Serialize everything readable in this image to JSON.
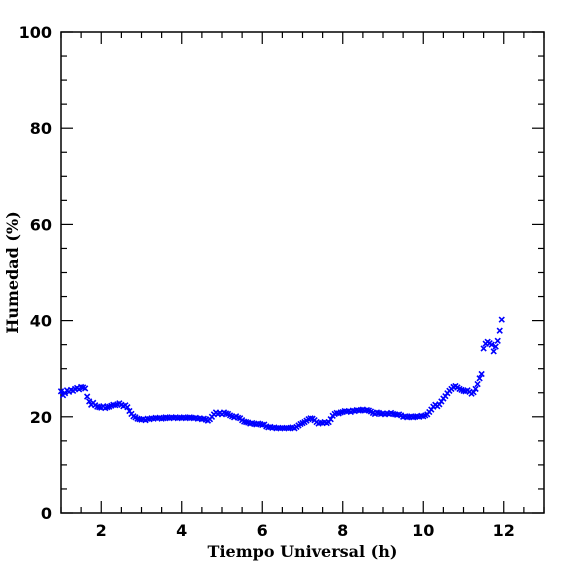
{
  "chart_data": {
    "type": "scatter",
    "xlabel": "Tiempo Universal (h)",
    "ylabel": "Humedad (%)",
    "xlim": [
      1,
      13
    ],
    "ylim": [
      0,
      100
    ],
    "xticks": [
      2,
      4,
      6,
      8,
      10,
      12
    ],
    "yticks": [
      0,
      20,
      40,
      60,
      80,
      100
    ],
    "marker": "x",
    "color": "#0000ff",
    "grid": false,
    "series": [
      {
        "points": [
          [
            1.0,
            25.3
          ],
          [
            1.05,
            24.5
          ],
          [
            1.1,
            24.9
          ],
          [
            1.15,
            25.5
          ],
          [
            1.2,
            25.2
          ],
          [
            1.25,
            25.6
          ],
          [
            1.3,
            25.4
          ],
          [
            1.35,
            25.8
          ],
          [
            1.4,
            26.0
          ],
          [
            1.45,
            25.7
          ],
          [
            1.5,
            26.2
          ],
          [
            1.55,
            26.1
          ],
          [
            1.6,
            25.9
          ],
          [
            1.65,
            24.2
          ],
          [
            1.7,
            23.2
          ],
          [
            1.75,
            22.5
          ],
          [
            1.8,
            22.9
          ],
          [
            1.85,
            22.4
          ],
          [
            1.9,
            22.1
          ],
          [
            1.95,
            22.0
          ],
          [
            2.0,
            21.9
          ],
          [
            2.05,
            22.2
          ],
          [
            2.1,
            21.8
          ],
          [
            2.15,
            22.0
          ],
          [
            2.2,
            22.1
          ],
          [
            2.25,
            22.3
          ],
          [
            2.3,
            22.5
          ],
          [
            2.35,
            22.4
          ],
          [
            2.4,
            22.6
          ],
          [
            2.45,
            22.8
          ],
          [
            2.5,
            22.5
          ],
          [
            2.55,
            22.2
          ],
          [
            2.6,
            22.4
          ],
          [
            2.65,
            22.0
          ],
          [
            2.7,
            21.2
          ],
          [
            2.75,
            20.6
          ],
          [
            2.8,
            20.1
          ],
          [
            2.85,
            19.9
          ],
          [
            2.9,
            19.6
          ],
          [
            2.95,
            19.5
          ],
          [
            3.0,
            19.4
          ],
          [
            3.05,
            19.5
          ],
          [
            3.1,
            19.3
          ],
          [
            3.15,
            19.6
          ],
          [
            3.2,
            19.5
          ],
          [
            3.25,
            19.7
          ],
          [
            3.3,
            19.6
          ],
          [
            3.35,
            19.8
          ],
          [
            3.4,
            19.7
          ],
          [
            3.45,
            19.8
          ],
          [
            3.5,
            19.6
          ],
          [
            3.55,
            19.7
          ],
          [
            3.6,
            19.9
          ],
          [
            3.65,
            19.8
          ],
          [
            3.7,
            19.7
          ],
          [
            3.75,
            19.9
          ],
          [
            3.8,
            19.8
          ],
          [
            3.85,
            19.9
          ],
          [
            3.9,
            19.7
          ],
          [
            3.95,
            19.8
          ],
          [
            4.0,
            19.8
          ],
          [
            4.05,
            19.9
          ],
          [
            4.1,
            19.7
          ],
          [
            4.15,
            19.8
          ],
          [
            4.2,
            19.9
          ],
          [
            4.25,
            19.8
          ],
          [
            4.3,
            19.7
          ],
          [
            4.35,
            19.8
          ],
          [
            4.4,
            19.6
          ],
          [
            4.45,
            19.7
          ],
          [
            4.5,
            19.5
          ],
          [
            4.55,
            19.6
          ],
          [
            4.6,
            19.4
          ],
          [
            4.65,
            19.2
          ],
          [
            4.7,
            19.5
          ],
          [
            4.75,
            20.0
          ],
          [
            4.8,
            20.5
          ],
          [
            4.85,
            20.9
          ],
          [
            4.9,
            20.6
          ],
          [
            4.95,
            20.8
          ],
          [
            5.0,
            20.5
          ],
          [
            5.05,
            20.9
          ],
          [
            5.1,
            20.7
          ],
          [
            5.15,
            20.6
          ],
          [
            5.2,
            20.3
          ],
          [
            5.25,
            20.1
          ],
          [
            5.3,
            19.9
          ],
          [
            5.35,
            20.1
          ],
          [
            5.4,
            19.8
          ],
          [
            5.45,
            19.7
          ],
          [
            5.5,
            19.3
          ],
          [
            5.55,
            19.0
          ],
          [
            5.6,
            18.9
          ],
          [
            5.65,
            18.8
          ],
          [
            5.7,
            18.6
          ],
          [
            5.75,
            18.7
          ],
          [
            5.8,
            18.5
          ],
          [
            5.85,
            18.4
          ],
          [
            5.9,
            18.6
          ],
          [
            5.95,
            18.5
          ],
          [
            6.0,
            18.3
          ],
          [
            6.05,
            18.4
          ],
          [
            6.1,
            18.0
          ],
          [
            6.15,
            17.8
          ],
          [
            6.2,
            17.9
          ],
          [
            6.25,
            17.7
          ],
          [
            6.3,
            17.8
          ],
          [
            6.35,
            17.6
          ],
          [
            6.4,
            17.7
          ],
          [
            6.45,
            17.6
          ],
          [
            6.5,
            17.7
          ],
          [
            6.55,
            17.6
          ],
          [
            6.6,
            17.7
          ],
          [
            6.65,
            17.6
          ],
          [
            6.7,
            17.7
          ],
          [
            6.75,
            17.8
          ],
          [
            6.8,
            17.6
          ],
          [
            6.85,
            17.9
          ],
          [
            6.9,
            18.2
          ],
          [
            6.95,
            18.5
          ],
          [
            7.0,
            18.7
          ],
          [
            7.05,
            18.9
          ],
          [
            7.1,
            19.2
          ],
          [
            7.15,
            19.5
          ],
          [
            7.2,
            19.7
          ],
          [
            7.25,
            19.6
          ],
          [
            7.3,
            19.3
          ],
          [
            7.35,
            18.9
          ],
          [
            7.4,
            18.6
          ],
          [
            7.45,
            18.8
          ],
          [
            7.5,
            18.7
          ],
          [
            7.55,
            18.9
          ],
          [
            7.6,
            18.7
          ],
          [
            7.65,
            18.9
          ],
          [
            7.7,
            19.5
          ],
          [
            7.75,
            20.2
          ],
          [
            7.8,
            20.6
          ],
          [
            7.85,
            20.8
          ],
          [
            7.9,
            20.7
          ],
          [
            7.95,
            20.9
          ],
          [
            8.0,
            21.0
          ],
          [
            8.05,
            21.2
          ],
          [
            8.1,
            21.1
          ],
          [
            8.15,
            21.2
          ],
          [
            8.2,
            21.0
          ],
          [
            8.25,
            21.3
          ],
          [
            8.3,
            21.2
          ],
          [
            8.35,
            21.4
          ],
          [
            8.4,
            21.3
          ],
          [
            8.45,
            21.4
          ],
          [
            8.5,
            21.5
          ],
          [
            8.55,
            21.3
          ],
          [
            8.6,
            21.4
          ],
          [
            8.65,
            21.3
          ],
          [
            8.7,
            21.1
          ],
          [
            8.75,
            20.8
          ],
          [
            8.8,
            20.6
          ],
          [
            8.85,
            20.9
          ],
          [
            8.9,
            20.8
          ],
          [
            8.95,
            20.6
          ],
          [
            9.0,
            20.7
          ],
          [
            9.05,
            20.5
          ],
          [
            9.1,
            20.7
          ],
          [
            9.15,
            20.6
          ],
          [
            9.2,
            20.8
          ],
          [
            9.25,
            20.6
          ],
          [
            9.3,
            20.5
          ],
          [
            9.35,
            20.4
          ],
          [
            9.4,
            20.5
          ],
          [
            9.45,
            20.3
          ],
          [
            9.5,
            20.0
          ],
          [
            9.55,
            20.1
          ],
          [
            9.6,
            19.9
          ],
          [
            9.65,
            20.0
          ],
          [
            9.7,
            20.1
          ],
          [
            9.75,
            19.9
          ],
          [
            9.8,
            20.0
          ],
          [
            9.85,
            20.1
          ],
          [
            9.9,
            20.0
          ],
          [
            9.95,
            20.2
          ],
          [
            10.0,
            20.1
          ],
          [
            10.05,
            20.3
          ],
          [
            10.1,
            20.5
          ],
          [
            10.15,
            21.0
          ],
          [
            10.2,
            21.5
          ],
          [
            10.25,
            22.1
          ],
          [
            10.3,
            22.5
          ],
          [
            10.35,
            22.2
          ],
          [
            10.4,
            22.6
          ],
          [
            10.45,
            23.2
          ],
          [
            10.5,
            23.8
          ],
          [
            10.55,
            24.3
          ],
          [
            10.6,
            24.9
          ],
          [
            10.65,
            25.4
          ],
          [
            10.7,
            25.8
          ],
          [
            10.75,
            26.2
          ],
          [
            10.8,
            26.4
          ],
          [
            10.85,
            26.1
          ],
          [
            10.9,
            25.8
          ],
          [
            10.95,
            25.6
          ],
          [
            11.0,
            25.4
          ],
          [
            11.05,
            25.3
          ],
          [
            11.1,
            25.5
          ],
          [
            11.15,
            25.2
          ],
          [
            11.2,
            24.8
          ],
          [
            11.25,
            25.1
          ],
          [
            11.3,
            25.8
          ],
          [
            11.35,
            26.8
          ],
          [
            11.4,
            28.0
          ],
          [
            11.45,
            28.9
          ],
          [
            11.5,
            34.2
          ],
          [
            11.55,
            35.2
          ],
          [
            11.6,
            35.6
          ],
          [
            11.65,
            35.3
          ],
          [
            11.7,
            35.0
          ],
          [
            11.75,
            33.6
          ],
          [
            11.8,
            34.6
          ],
          [
            11.85,
            35.8
          ],
          [
            11.9,
            37.9
          ],
          [
            11.95,
            40.2
          ]
        ]
      }
    ]
  }
}
